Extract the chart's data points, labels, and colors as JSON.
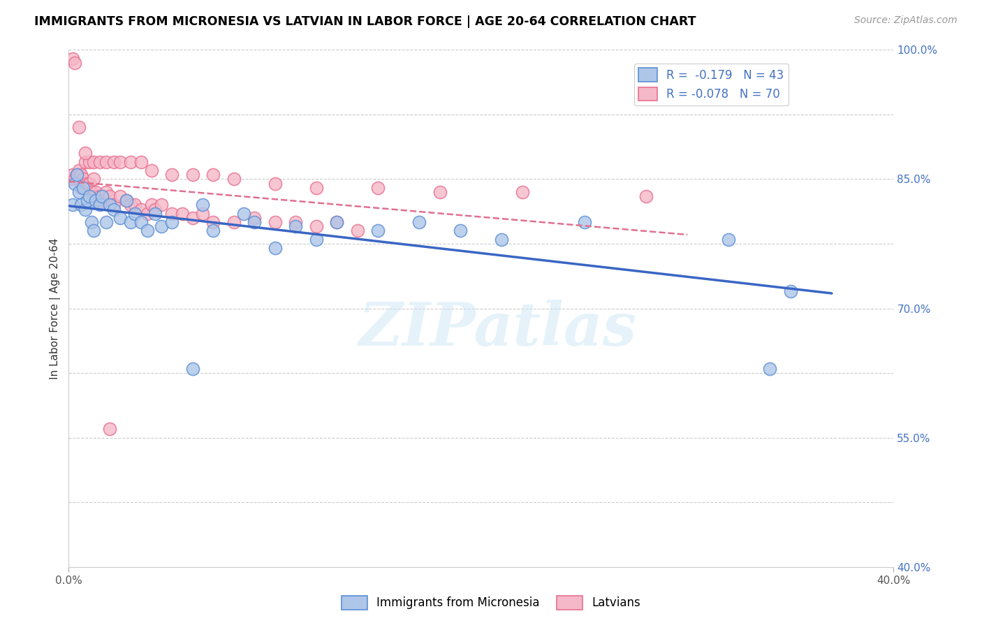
{
  "title": "IMMIGRANTS FROM MICRONESIA VS LATVIAN IN LABOR FORCE | AGE 20-64 CORRELATION CHART",
  "source": "Source: ZipAtlas.com",
  "ylabel": "In Labor Force | Age 20-64",
  "xlim": [
    0.0,
    0.4
  ],
  "ylim": [
    0.4,
    1.0
  ],
  "ytick_right_labels": [
    "40.0%",
    "",
    "55.0%",
    "",
    "70.0%",
    "",
    "85.0%",
    "",
    "100.0%"
  ],
  "ytick_right_values": [
    0.4,
    0.475,
    0.55,
    0.625,
    0.7,
    0.775,
    0.85,
    0.925,
    1.0
  ],
  "watermark": "ZIPatlas",
  "legend_r1": "R =  -0.179",
  "legend_n1": "N = 43",
  "legend_r2": "R = -0.078",
  "legend_n2": "N = 70",
  "color_blue": "#aec6e8",
  "color_pink": "#f5b8c8",
  "color_blue_edge": "#5b8ed6",
  "color_pink_edge": "#e87090",
  "color_blue_line": "#3a66c4",
  "color_pink_line": "#e07090",
  "color_axis_right": "#4472c4",
  "micronesia_x": [
    0.002,
    0.003,
    0.004,
    0.005,
    0.006,
    0.007,
    0.008,
    0.009,
    0.01,
    0.011,
    0.012,
    0.013,
    0.015,
    0.016,
    0.018,
    0.02,
    0.022,
    0.025,
    0.028,
    0.03,
    0.032,
    0.035,
    0.038,
    0.042,
    0.045,
    0.05,
    0.06,
    0.065,
    0.07,
    0.085,
    0.09,
    0.1,
    0.11,
    0.12,
    0.13,
    0.15,
    0.17,
    0.19,
    0.21,
    0.25,
    0.32,
    0.34,
    0.35
  ],
  "micronesia_y": [
    0.82,
    0.845,
    0.855,
    0.835,
    0.82,
    0.84,
    0.815,
    0.825,
    0.83,
    0.8,
    0.79,
    0.825,
    0.82,
    0.83,
    0.8,
    0.82,
    0.815,
    0.805,
    0.825,
    0.8,
    0.81,
    0.8,
    0.79,
    0.81,
    0.795,
    0.8,
    0.63,
    0.82,
    0.79,
    0.81,
    0.8,
    0.77,
    0.795,
    0.78,
    0.8,
    0.79,
    0.8,
    0.79,
    0.78,
    0.8,
    0.78,
    0.63,
    0.72
  ],
  "latvian_x": [
    0.001,
    0.002,
    0.003,
    0.004,
    0.005,
    0.005,
    0.006,
    0.006,
    0.007,
    0.007,
    0.008,
    0.009,
    0.01,
    0.01,
    0.011,
    0.012,
    0.013,
    0.014,
    0.015,
    0.016,
    0.018,
    0.02,
    0.022,
    0.025,
    0.028,
    0.03,
    0.032,
    0.035,
    0.038,
    0.04,
    0.042,
    0.045,
    0.05,
    0.055,
    0.06,
    0.065,
    0.07,
    0.08,
    0.09,
    0.1,
    0.11,
    0.12,
    0.13,
    0.14,
    0.008,
    0.01,
    0.012,
    0.015,
    0.018,
    0.022,
    0.025,
    0.03,
    0.035,
    0.04,
    0.05,
    0.06,
    0.07,
    0.08,
    0.1,
    0.12,
    0.15,
    0.18,
    0.22,
    0.28,
    0.002,
    0.003,
    0.005,
    0.008,
    0.012,
    0.02
  ],
  "latvian_y": [
    0.85,
    0.855,
    0.85,
    0.855,
    0.855,
    0.86,
    0.84,
    0.855,
    0.845,
    0.85,
    0.84,
    0.845,
    0.84,
    0.845,
    0.835,
    0.83,
    0.835,
    0.825,
    0.83,
    0.825,
    0.835,
    0.83,
    0.82,
    0.83,
    0.825,
    0.82,
    0.82,
    0.815,
    0.81,
    0.82,
    0.815,
    0.82,
    0.81,
    0.81,
    0.805,
    0.81,
    0.8,
    0.8,
    0.805,
    0.8,
    0.8,
    0.795,
    0.8,
    0.79,
    0.87,
    0.87,
    0.87,
    0.87,
    0.87,
    0.87,
    0.87,
    0.87,
    0.87,
    0.86,
    0.855,
    0.855,
    0.855,
    0.85,
    0.845,
    0.84,
    0.84,
    0.835,
    0.835,
    0.83,
    0.99,
    0.985,
    0.91,
    0.88,
    0.85,
    0.56
  ]
}
